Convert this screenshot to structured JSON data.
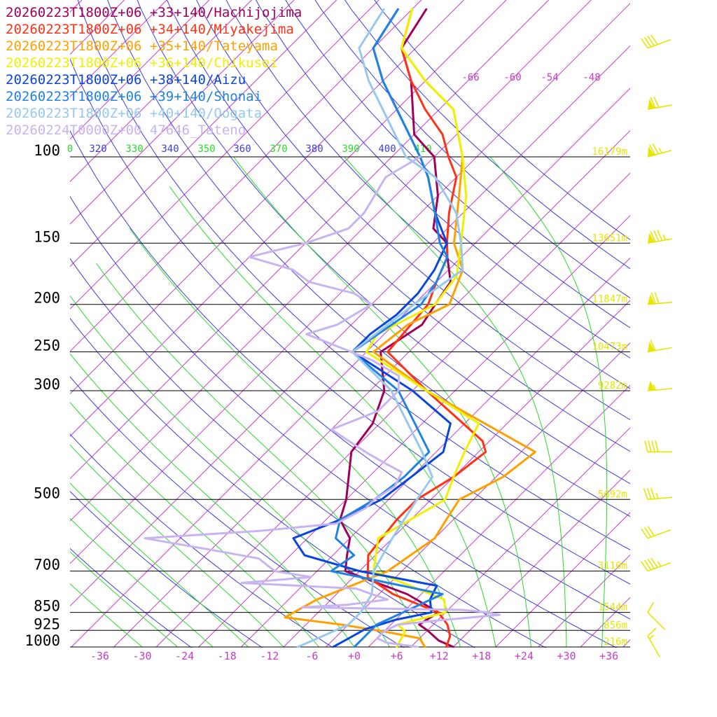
{
  "chart_data": {
    "type": "line",
    "title": "",
    "xlabel": "",
    "ylabel": "",
    "x_ticks": [
      "-36",
      "-30",
      "-24",
      "-18",
      "-12",
      "-6",
      "+0",
      "+6",
      "+12",
      "+18",
      "+24",
      "+30",
      "+36"
    ],
    "y_ticks": [
      "100",
      "150",
      "200",
      "250",
      "300",
      "500",
      "700",
      "850",
      "925",
      "1000"
    ],
    "height_labels": [
      "16179m",
      "13651m",
      "11847m",
      "10473m",
      "9282m",
      "5692m",
      "3110m",
      "1544m",
      "856m",
      "216m"
    ],
    "theta_labels": [
      "0",
      "320",
      "330",
      "340",
      "350",
      "360",
      "370",
      "380",
      "390",
      "400",
      "410"
    ],
    "upper_temp_labels": [
      "-66",
      "-60",
      "-54",
      "-48"
    ],
    "colors": {
      "dry_adiabat": "#3c3cdc",
      "moist_adiabat": "#28dc28",
      "isotherm": "#c83cc8",
      "isobar": "#000000",
      "height_label": "#e6e600",
      "wind_barb": "#e6e600"
    },
    "series": [
      {
        "name": "20260223T1800Z+06 +33+140/Hachijojima",
        "color": "#a0005a",
        "points": [
          [
            1000,
            14
          ],
          [
            970,
            11
          ],
          [
            925,
            8
          ],
          [
            900,
            6
          ],
          [
            850,
            7
          ],
          [
            780,
            0
          ],
          [
            700,
            -12
          ],
          [
            650,
            -14
          ],
          [
            600,
            -16
          ],
          [
            550,
            -20
          ],
          [
            500,
            -22
          ],
          [
            400,
            -28
          ],
          [
            350,
            -29
          ],
          [
            300,
            -32
          ],
          [
            250,
            -38
          ],
          [
            220,
            -36
          ],
          [
            200,
            -37
          ],
          [
            180,
            -38
          ],
          [
            160,
            -42
          ],
          [
            150,
            -44
          ],
          [
            140,
            -48
          ],
          [
            120,
            -52
          ],
          [
            100,
            -58
          ],
          [
            90,
            -64
          ],
          [
            70,
            -72
          ],
          [
            60,
            -78
          ],
          [
            50,
            -80
          ]
        ]
      },
      {
        "name": "20260223T1800Z+06 +34+140/Miyakejima",
        "color": "#ff3214",
        "points": [
          [
            1000,
            13
          ],
          [
            950,
            12
          ],
          [
            900,
            10
          ],
          [
            850,
            7
          ],
          [
            780,
            -2
          ],
          [
            720,
            -8
          ],
          [
            650,
            -11
          ],
          [
            550,
            -12
          ],
          [
            500,
            -12
          ],
          [
            450,
            -10
          ],
          [
            400,
            -9
          ],
          [
            380,
            -11
          ],
          [
            300,
            -26
          ],
          [
            250,
            -37
          ],
          [
            200,
            -38
          ],
          [
            180,
            -40
          ],
          [
            160,
            -42
          ],
          [
            150,
            -44
          ],
          [
            130,
            -48
          ],
          [
            110,
            -52
          ],
          [
            100,
            -56
          ],
          [
            90,
            -60
          ],
          [
            80,
            -66
          ],
          [
            70,
            -72
          ],
          [
            60,
            -78
          ],
          [
            50,
            -82
          ]
        ]
      },
      {
        "name": "20260223T1800Z+06 +35+140/Tateyama",
        "color": "#ffa000",
        "points": [
          [
            1000,
            10
          ],
          [
            960,
            8
          ],
          [
            930,
            2
          ],
          [
            900,
            -5
          ],
          [
            870,
            -14
          ],
          [
            800,
            -12
          ],
          [
            700,
            -6
          ],
          [
            600,
            -4
          ],
          [
            550,
            -5
          ],
          [
            500,
            -6
          ],
          [
            450,
            -3
          ],
          [
            400,
            -2
          ],
          [
            300,
            -26
          ],
          [
            250,
            -39
          ],
          [
            220,
            -38
          ],
          [
            200,
            -35
          ],
          [
            170,
            -38
          ],
          [
            150,
            -43
          ],
          [
            120,
            -49
          ],
          [
            100,
            -54
          ],
          [
            80,
            -62
          ],
          [
            70,
            -70
          ],
          [
            60,
            -78
          ],
          [
            50,
            -82
          ]
        ]
      },
      {
        "name": "20260223T1800Z+06 +36+140/Chikusei",
        "color": "#f0f000",
        "points": [
          [
            1000,
            6
          ],
          [
            930,
            5
          ],
          [
            900,
            3
          ],
          [
            850,
            8
          ],
          [
            800,
            6
          ],
          [
            700,
            -8
          ],
          [
            600,
            -12
          ],
          [
            500,
            -8
          ],
          [
            450,
            -10
          ],
          [
            400,
            -12
          ],
          [
            350,
            -14
          ],
          [
            300,
            -26
          ],
          [
            250,
            -40
          ],
          [
            230,
            -41
          ],
          [
            200,
            -37
          ],
          [
            175,
            -38
          ],
          [
            150,
            -42
          ],
          [
            120,
            -48
          ],
          [
            100,
            -54
          ],
          [
            80,
            -62
          ],
          [
            70,
            -70
          ],
          [
            60,
            -78
          ],
          [
            50,
            -82
          ]
        ]
      },
      {
        "name": "20260223T1800Z+06 +38+140/Aizu",
        "color": "#0a46dc",
        "points": [
          [
            1000,
            -3
          ],
          [
            960,
            -2
          ],
          [
            920,
            -1
          ],
          [
            880,
            2
          ],
          [
            850,
            6
          ],
          [
            800,
            4
          ],
          [
            750,
            3
          ],
          [
            700,
            -10
          ],
          [
            650,
            -20
          ],
          [
            600,
            -24
          ],
          [
            550,
            -20
          ],
          [
            500,
            -17
          ],
          [
            450,
            -16
          ],
          [
            400,
            -15
          ],
          [
            350,
            -18
          ],
          [
            300,
            -28
          ],
          [
            250,
            -42
          ],
          [
            230,
            -42
          ],
          [
            210,
            -41
          ],
          [
            190,
            -41
          ],
          [
            170,
            -42
          ],
          [
            150,
            -44
          ],
          [
            130,
            -50
          ],
          [
            110,
            -56
          ],
          [
            100,
            -60
          ],
          [
            80,
            -70
          ],
          [
            70,
            -76
          ],
          [
            60,
            -82
          ],
          [
            50,
            -84
          ]
        ]
      },
      {
        "name": "20260223T1800Z+06 +39+140/Shonai",
        "color": "#1e82e6",
        "points": [
          [
            1000,
            0
          ],
          [
            950,
            0
          ],
          [
            900,
            0
          ],
          [
            850,
            2
          ],
          [
            780,
            5
          ],
          [
            700,
            -14
          ],
          [
            650,
            -13
          ],
          [
            600,
            -18
          ],
          [
            550,
            -20
          ],
          [
            500,
            -18
          ],
          [
            450,
            -17
          ],
          [
            400,
            -17
          ],
          [
            300,
            -30
          ],
          [
            250,
            -42
          ],
          [
            200,
            -39
          ],
          [
            180,
            -40
          ],
          [
            160,
            -42
          ],
          [
            150,
            -45
          ],
          [
            130,
            -50
          ],
          [
            110,
            -56
          ],
          [
            100,
            -60
          ],
          [
            80,
            -70
          ],
          [
            70,
            -76
          ],
          [
            60,
            -82
          ],
          [
            50,
            -84
          ]
        ]
      },
      {
        "name": "20260223T1800Z+06 +40+140/Oogata",
        "color": "#96c8f0",
        "points": [
          [
            1000,
            -8
          ],
          [
            950,
            -6
          ],
          [
            900,
            -4
          ],
          [
            850,
            -4
          ],
          [
            780,
            -5
          ],
          [
            700,
            -8
          ],
          [
            600,
            -10
          ],
          [
            500,
            -12
          ],
          [
            450,
            -13
          ],
          [
            400,
            -18
          ],
          [
            300,
            -31
          ],
          [
            250,
            -42
          ],
          [
            200,
            -40
          ],
          [
            170,
            -38
          ],
          [
            150,
            -42
          ],
          [
            130,
            -47
          ],
          [
            110,
            -55
          ],
          [
            100,
            -62
          ],
          [
            80,
            -72
          ],
          [
            70,
            -78
          ],
          [
            60,
            -84
          ],
          [
            50,
            -86
          ]
        ]
      },
      {
        "name": "20260224T0000Z+00 47646_Tateno",
        "color": "#c8b4f0",
        "points": [
          [
            1000,
            9
          ],
          [
            980,
            4
          ],
          [
            960,
            2
          ],
          [
            930,
            2
          ],
          [
            900,
            3
          ],
          [
            880,
            9
          ],
          [
            860,
            16
          ],
          [
            850,
            14
          ],
          [
            840,
            10
          ],
          [
            830,
            -13
          ],
          [
            820,
            -7
          ],
          [
            800,
            -2
          ],
          [
            780,
            -5
          ],
          [
            760,
            -8
          ],
          [
            740,
            -25
          ],
          [
            720,
            -16
          ],
          [
            700,
            -22
          ],
          [
            660,
            -26
          ],
          [
            640,
            -32
          ],
          [
            600,
            -45
          ],
          [
            580,
            -30
          ],
          [
            560,
            -20
          ],
          [
            520,
            -18
          ],
          [
            500,
            -18
          ],
          [
            470,
            -17
          ],
          [
            440,
            -18
          ],
          [
            420,
            -22
          ],
          [
            400,
            -26
          ],
          [
            360,
            -34
          ],
          [
            330,
            -30
          ],
          [
            300,
            -30
          ],
          [
            280,
            -32
          ],
          [
            260,
            -38
          ],
          [
            230,
            -51
          ],
          [
            220,
            -48
          ],
          [
            200,
            -46
          ],
          [
            190,
            -50
          ],
          [
            180,
            -58
          ],
          [
            170,
            -62
          ],
          [
            160,
            -70
          ],
          [
            150,
            -64
          ],
          [
            140,
            -60
          ],
          [
            130,
            -60
          ],
          [
            110,
            -62
          ],
          [
            100,
            -60
          ]
        ]
      }
    ],
    "wind_barbs": [
      {
        "pressure": 60,
        "direction": 250,
        "speed_kt": 40
      },
      {
        "pressure": 80,
        "direction": 260,
        "speed_kt": 70
      },
      {
        "pressure": 100,
        "direction": 255,
        "speed_kt": 75
      },
      {
        "pressure": 150,
        "direction": 260,
        "speed_kt": 85
      },
      {
        "pressure": 200,
        "direction": 265,
        "speed_kt": 70
      },
      {
        "pressure": 250,
        "direction": 260,
        "speed_kt": 60
      },
      {
        "pressure": 300,
        "direction": 265,
        "speed_kt": 55
      },
      {
        "pressure": 400,
        "direction": 270,
        "speed_kt": 40
      },
      {
        "pressure": 500,
        "direction": 265,
        "speed_kt": 35
      },
      {
        "pressure": 600,
        "direction": 250,
        "speed_kt": 30
      },
      {
        "pressure": 700,
        "direction": 250,
        "speed_kt": 45
      },
      {
        "pressure": 850,
        "direction": 315,
        "speed_kt": 10
      },
      {
        "pressure": 950,
        "direction": 330,
        "speed_kt": 15
      }
    ]
  }
}
